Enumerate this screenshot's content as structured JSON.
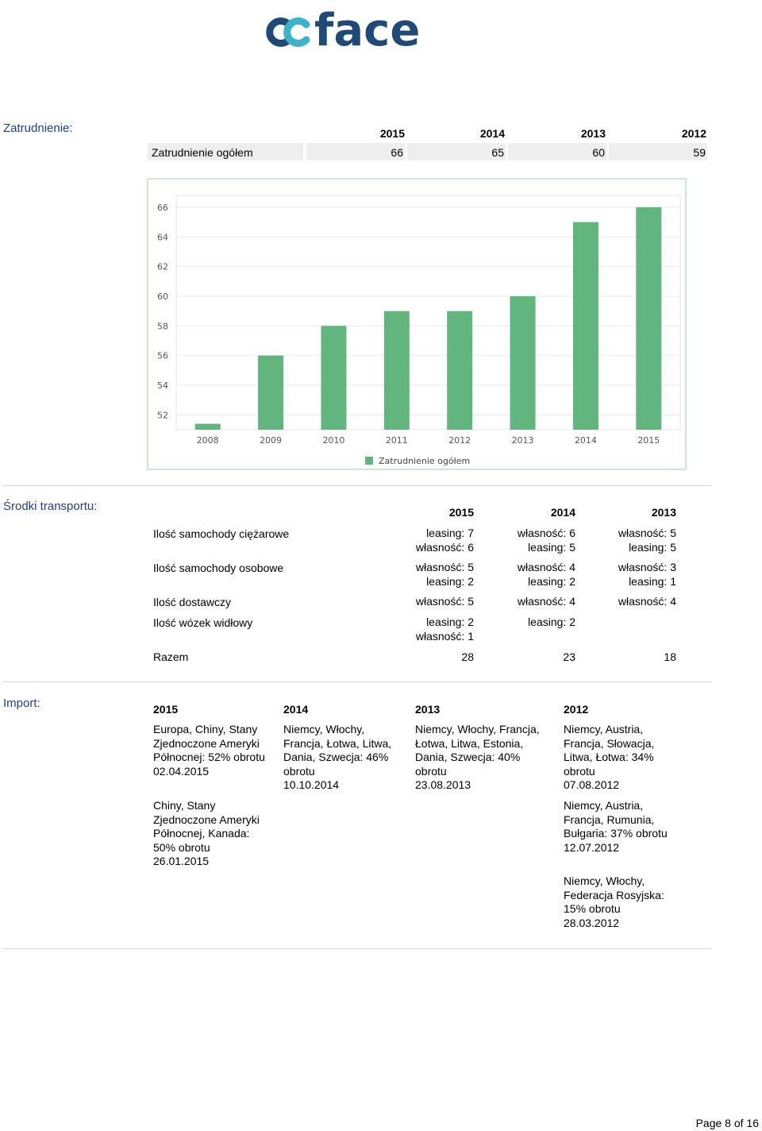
{
  "logo": {
    "text": "coface"
  },
  "employment": {
    "title": "Zatrudnienie:",
    "years": [
      "2015",
      "2014",
      "2013",
      "2012"
    ],
    "row_label": "Zatrudnienie ogółem",
    "values": [
      "66",
      "65",
      "60",
      "59"
    ]
  },
  "chart_data": {
    "type": "bar",
    "categories": [
      "2008",
      "2009",
      "2010",
      "2011",
      "2012",
      "2013",
      "2014",
      "2015"
    ],
    "series": [
      {
        "name": "Zatrudnienie ogółem",
        "values": [
          51.4,
          56,
          58,
          59,
          59,
          60,
          65,
          66
        ]
      }
    ],
    "ylim": [
      51,
      66.8
    ],
    "yticks": [
      "52",
      "54",
      "56",
      "58",
      "60",
      "62",
      "64",
      "66"
    ],
    "grid": true,
    "legend": "bottom",
    "bar_color": "#63b57e"
  },
  "transport": {
    "title": "Środki transportu:",
    "years": [
      "2015",
      "2014",
      "2013"
    ],
    "rows": [
      {
        "label": "Ilość samochody ciężarowe",
        "cells": [
          [
            "leasing: 7",
            "własność: 6"
          ],
          [
            "własność: 6",
            "leasing: 5"
          ],
          [
            "własność: 5",
            "leasing: 5"
          ]
        ]
      },
      {
        "label": "Ilość samochody osobowe",
        "cells": [
          [
            "własność: 5",
            "leasing: 2"
          ],
          [
            "własność: 4",
            "leasing: 2"
          ],
          [
            "własność: 3",
            "leasing: 1"
          ]
        ]
      },
      {
        "label": "Ilość dostawczy",
        "cells": [
          [
            "własność: 5"
          ],
          [
            "własność: 4"
          ],
          [
            "własność: 4"
          ]
        ]
      },
      {
        "label": "Ilość wózek widłowy",
        "cells": [
          [
            "leasing: 2",
            "własność: 1"
          ],
          [
            "leasing: 2"
          ],
          []
        ]
      }
    ],
    "total_label": "Razem",
    "totals": [
      "28",
      "23",
      "18"
    ]
  },
  "import": {
    "title": "Import:",
    "years": [
      "2015",
      "2014",
      "2013",
      "2012"
    ],
    "columns": [
      [
        [
          "Europa, Chiny, Stany",
          "Zjednoczone Ameryki",
          "Północnej: 52% obrotu",
          "02.04.2015"
        ],
        [
          "Chiny, Stany",
          "Zjednoczone Ameryki",
          "Północnej, Kanada:",
          "50% obrotu",
          "26.01.2015"
        ]
      ],
      [
        [
          "Niemcy, Włochy,",
          "Francja, Łotwa, Litwa,",
          "Dania, Szwecja: 46%",
          "obrotu",
          "10.10.2014"
        ]
      ],
      [
        [
          "Niemcy, Włochy, Francja,",
          "Łotwa, Litwa, Estonia,",
          "Dania, Szwecja: 40%",
          "obrotu",
          "23.08.2013"
        ]
      ],
      [
        [
          "Niemcy, Austria,",
          "Francja, Słowacja,",
          "Litwa, Łotwa: 34%",
          "obrotu",
          "07.08.2012"
        ],
        [
          "Niemcy, Austria,",
          "Francja, Rumunia,",
          "Bułgaria: 37% obrotu",
          "12.07.2012"
        ],
        [
          "Niemcy, Włochy,",
          "Federacja Rosyjska:",
          "15% obrotu",
          "28.03.2012"
        ]
      ]
    ]
  },
  "footer": {
    "page": "Page 8 of 16"
  }
}
